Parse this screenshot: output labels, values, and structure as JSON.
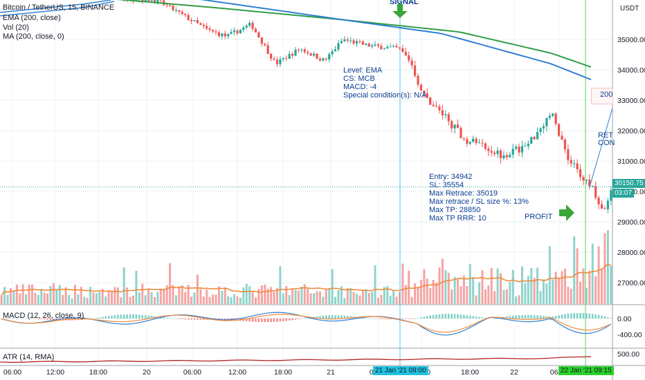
{
  "legend": {
    "symbol": "Bitcoin / TetherUS, 15, BINANCE",
    "ema": "EMA (200, close)",
    "vol": "Vol (20)",
    "ma": "MA (200, close, 0)",
    "macd": "MACD (12, 26, close, 9)",
    "atr": "ATR (14, RMA)"
  },
  "currency": "USDT",
  "annotations": {
    "signal": "SIGNAL",
    "trade_info": [
      "Level: EMA",
      "CS: MCB",
      "MACD: -4",
      "Special condition(s): N/A"
    ],
    "entry_info": [
      "Entry: 34942",
      "SL: 35554",
      "Max Retrace: 35019",
      "Max retrace / SL size %: 13%",
      "Max TP: 28850",
      "Max TP RRR: 10"
    ],
    "profit": "PROFIT",
    "right_cut_1": "RET",
    "right_cut_2": "CON",
    "right_box": "200"
  },
  "price_tags": {
    "last_price": "30150.75",
    "countdown": "03:07"
  },
  "time_badges": {
    "signal_time": "21 Jan '21   09:00",
    "profit_time": "22 Jan '21   09:15"
  },
  "colors": {
    "up": "#26a69a",
    "down": "#ef5350",
    "ema": "#2e9e44",
    "ma": "#2f7fd1",
    "vol_ma": "#f08a3a",
    "signal_line": "#2196f3",
    "macd_signal": "#f08a3a",
    "atr": "#b22222",
    "arrow": "#3aa53a"
  },
  "chart_data": {
    "type": "candlestick",
    "title": "Bitcoin / TetherUS, 15, BINANCE",
    "y_ticks": [
      35000,
      34000,
      33000,
      32000,
      31000,
      30000,
      29000,
      28000,
      27000
    ],
    "y_tick_labels": [
      "35000.00",
      "34000.00",
      "33000.00",
      "32000.00",
      "31000.00",
      "30000.00",
      "29000.00",
      "28000.00",
      "27000.00"
    ],
    "ylim": [
      26300,
      36300
    ],
    "x_tick_labels": [
      "06:00",
      "12:00",
      "18:00",
      "20",
      "06:00",
      "12:00",
      "18:00",
      "21",
      "06:00",
      "12:00",
      "18:00",
      "22",
      "06:00"
    ],
    "price_path": [
      {
        "t": 0,
        "p": 37000
      },
      {
        "t": 0.07,
        "p": 36800
      },
      {
        "t": 0.13,
        "p": 36700
      },
      {
        "t": 0.19,
        "p": 36400
      },
      {
        "t": 0.255,
        "p": 36300
      },
      {
        "t": 0.29,
        "p": 35900
      },
      {
        "t": 0.34,
        "p": 35300
      },
      {
        "t": 0.37,
        "p": 35100
      },
      {
        "t": 0.41,
        "p": 35500
      },
      {
        "t": 0.45,
        "p": 34200
      },
      {
        "t": 0.49,
        "p": 34700
      },
      {
        "t": 0.53,
        "p": 34300
      },
      {
        "t": 0.56,
        "p": 35000
      },
      {
        "t": 0.6,
        "p": 34800
      },
      {
        "t": 0.65,
        "p": 34700
      },
      {
        "t": 0.67,
        "p": 34300
      },
      {
        "t": 0.69,
        "p": 33200
      },
      {
        "t": 0.72,
        "p": 32600
      },
      {
        "t": 0.76,
        "p": 31700
      },
      {
        "t": 0.78,
        "p": 31600
      },
      {
        "t": 0.82,
        "p": 31200
      },
      {
        "t": 0.86,
        "p": 31500
      },
      {
        "t": 0.9,
        "p": 32600
      },
      {
        "t": 0.93,
        "p": 31000
      },
      {
        "t": 0.95,
        "p": 30500
      },
      {
        "t": 0.97,
        "p": 30000
      },
      {
        "t": 0.985,
        "p": 29200
      },
      {
        "t": 1,
        "p": 30150
      }
    ],
    "ema200": [
      {
        "t": 0,
        "p": 36650
      },
      {
        "t": 0.35,
        "p": 36050
      },
      {
        "t": 0.56,
        "p": 35650
      },
      {
        "t": 0.75,
        "p": 35250
      },
      {
        "t": 0.9,
        "p": 34550
      },
      {
        "t": 1,
        "p": 33850
      }
    ],
    "ma200": [
      {
        "t": 0,
        "p": 36850
      },
      {
        "t": 0.3,
        "p": 36400
      },
      {
        "t": 0.56,
        "p": 35650
      },
      {
        "t": 0.72,
        "p": 35200
      },
      {
        "t": 0.9,
        "p": 34200
      },
      {
        "t": 1,
        "p": 33400
      }
    ],
    "macd_ticks": [
      "0.00",
      "-400.00"
    ],
    "atr_ticks": [
      "500.00"
    ]
  }
}
